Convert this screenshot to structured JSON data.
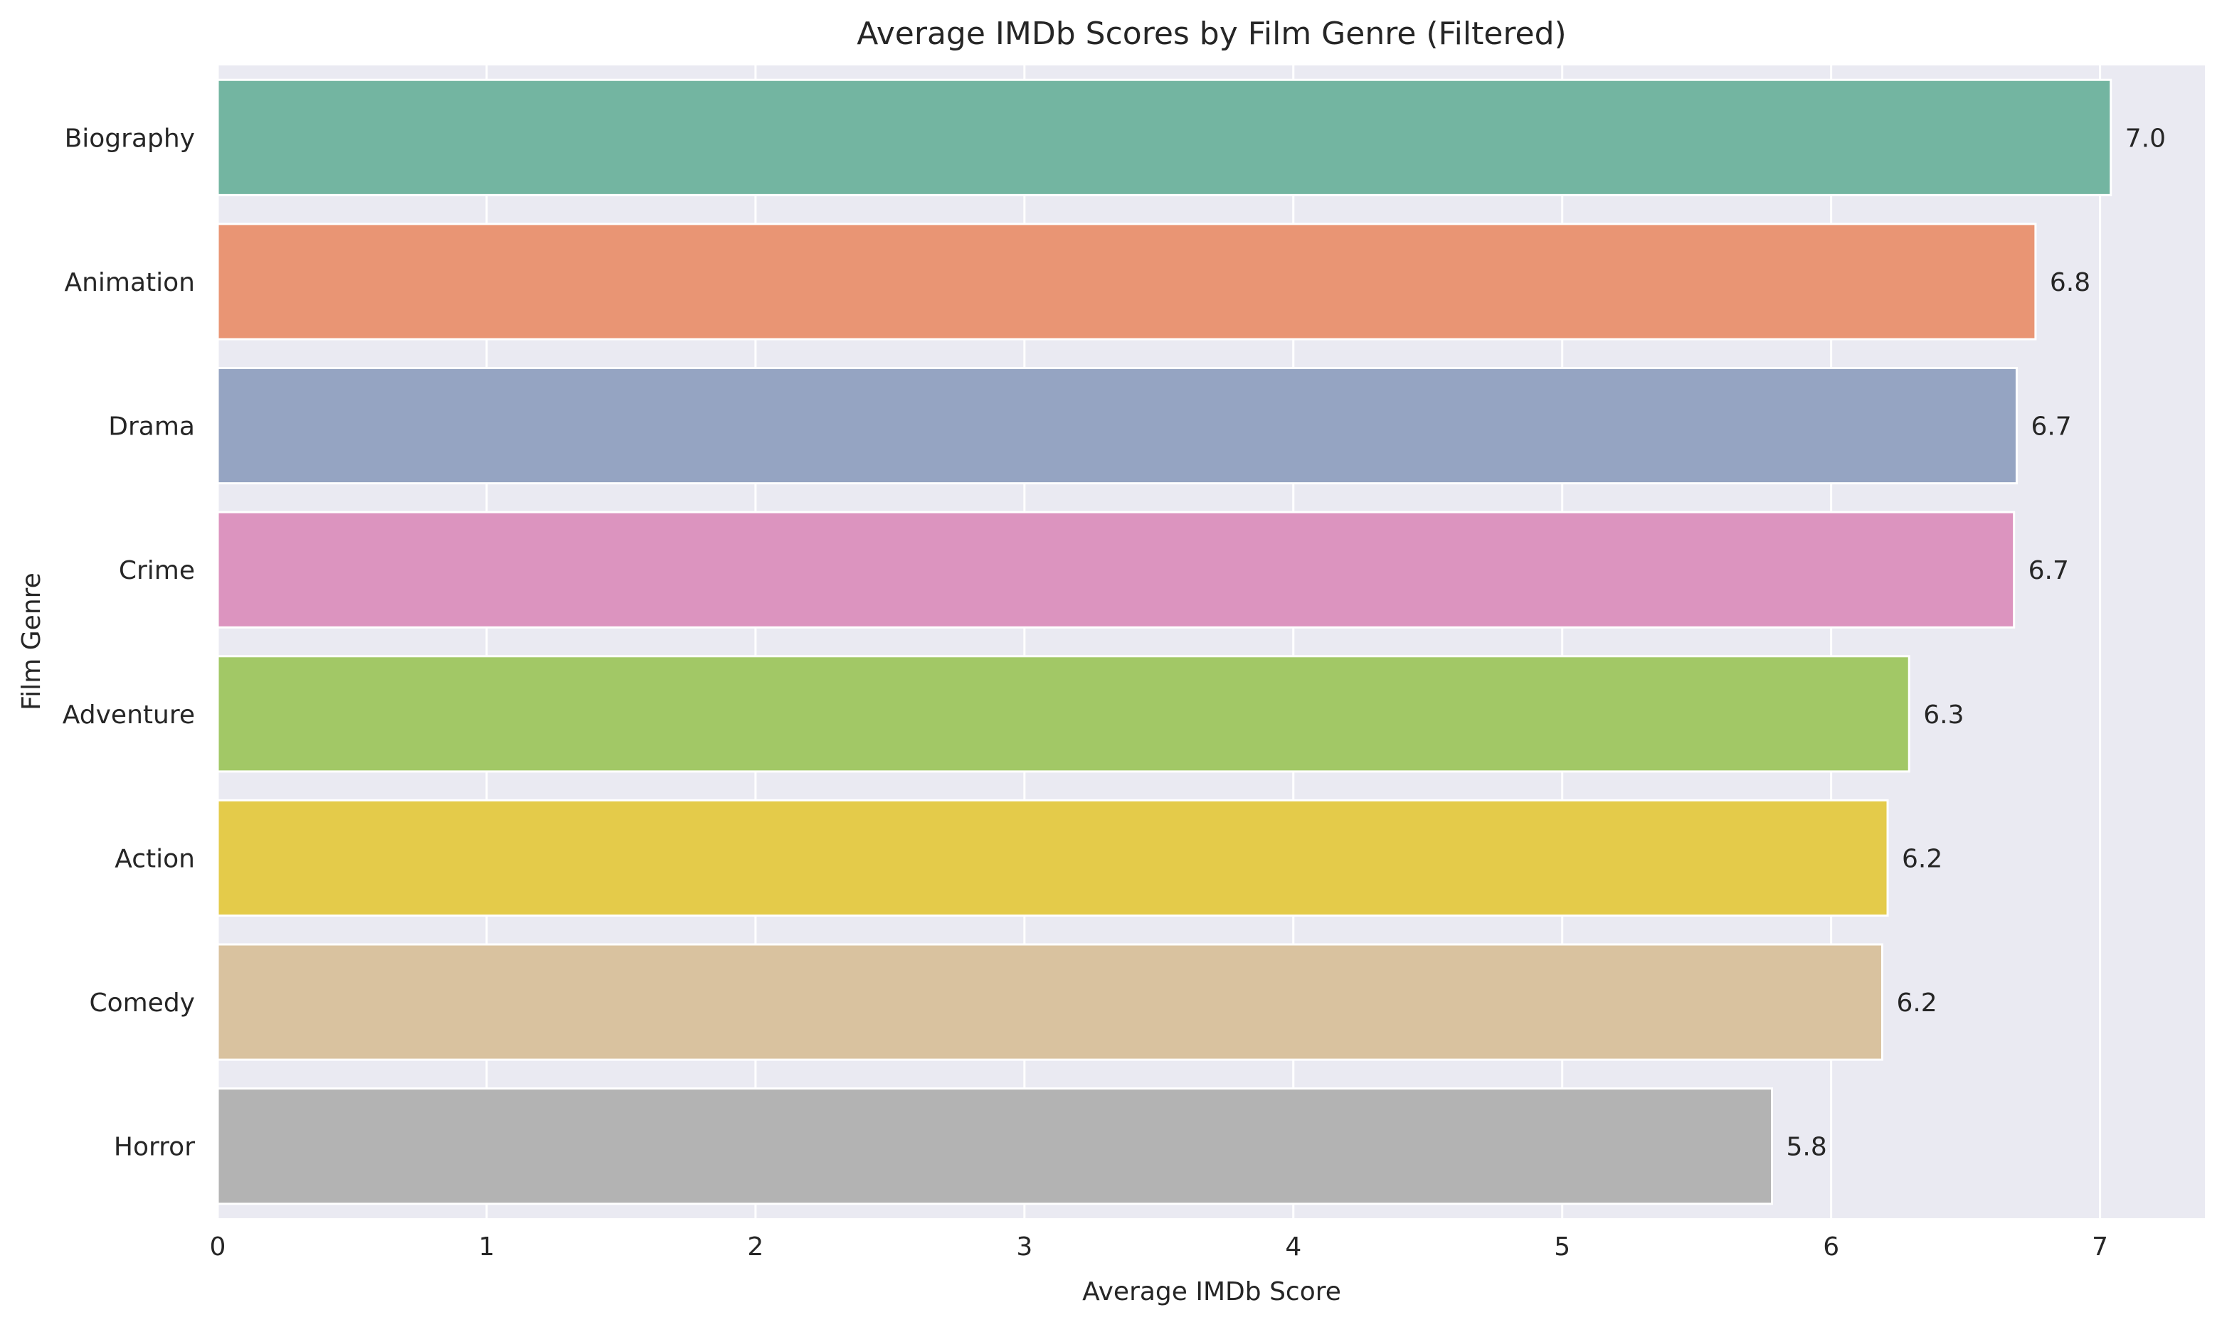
{
  "chart_data": {
    "type": "bar",
    "orientation": "horizontal",
    "title": "Average IMDb Scores by Film Genre (Filtered)",
    "xlabel": "Average IMDb Score",
    "ylabel": "Film Genre",
    "categories": [
      "Biography",
      "Animation",
      "Drama",
      "Crime",
      "Adventure",
      "Action",
      "Comedy",
      "Horror"
    ],
    "values": [
      7.04,
      6.76,
      6.69,
      6.68,
      6.29,
      6.21,
      6.19,
      5.78
    ],
    "value_labels": [
      "7.0",
      "6.8",
      "6.7",
      "6.7",
      "6.3",
      "6.2",
      "6.2",
      "5.8"
    ],
    "colors": [
      "#73b5a1",
      "#e99574",
      "#95a4c2",
      "#dc94bf",
      "#a2c866",
      "#e4cb4a",
      "#d9c29f",
      "#b3b3b3"
    ],
    "xlim": [
      0,
      7.39
    ],
    "xticks": [
      0,
      1,
      2,
      3,
      4,
      5,
      6,
      7
    ],
    "xtick_labels": [
      "0",
      "1",
      "2",
      "3",
      "4",
      "5",
      "6",
      "7"
    ],
    "grid": true,
    "background": "#eaeaf2"
  }
}
